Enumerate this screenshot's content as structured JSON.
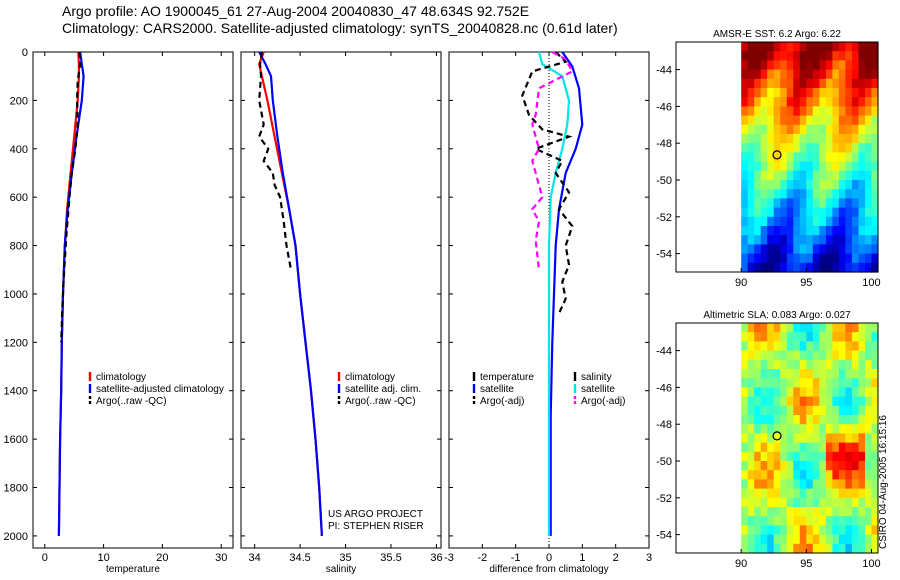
{
  "header": {
    "line1": "Argo profile: AO 1900045_61 27-Aug-2004 20040830_47 48.634S 92.752E",
    "line2": "Climatology: CARS2000. Satellite-adjusted climatology: synTS_20040828.nc (0.61d later)"
  },
  "side_label": "CSIRO 04-Aug-2005 16:15:16",
  "colors": {
    "red": "#ff0000",
    "blue": "#0000ff",
    "black": "#000000",
    "cyan": "#00e5e5",
    "magenta": "#ff00ff"
  },
  "chart_data": [
    {
      "id": "temperature",
      "type": "line",
      "xlabel": "temperature",
      "ylabel": "",
      "xlim": [
        -2,
        32
      ],
      "ylim": [
        2050,
        0
      ],
      "xticks": [
        0,
        10,
        20,
        30
      ],
      "yticks": [
        0,
        200,
        400,
        600,
        800,
        1000,
        1200,
        1400,
        1600,
        1800,
        2000
      ],
      "legend": [
        "climatology",
        "satellite-adjusted climatology",
        "Argo(..raw -QC)"
      ],
      "series": [
        {
          "name": "climatology",
          "color": "red",
          "dash": false,
          "x": [
            5.7,
            5.8,
            5.8,
            5.6,
            5.0,
            4.4,
            3.8,
            3.4,
            3.1,
            2.9,
            2.8,
            2.6,
            2.5,
            2.4
          ],
          "y": [
            0,
            50,
            100,
            200,
            350,
            500,
            650,
            800,
            1000,
            1200,
            1400,
            1600,
            1800,
            2000
          ]
        },
        {
          "name": "satellite-adjusted climatology",
          "color": "blue",
          "dash": false,
          "x": [
            6.0,
            6.3,
            6.6,
            6.3,
            5.4,
            4.6,
            3.9,
            3.4,
            3.1,
            2.9,
            2.8,
            2.6,
            2.5,
            2.4
          ],
          "y": [
            0,
            50,
            100,
            200,
            350,
            500,
            650,
            800,
            1000,
            1200,
            1400,
            1600,
            1800,
            2000
          ]
        },
        {
          "name": "Argo(..raw -QC)",
          "color": "black",
          "dash": true,
          "x": [
            5.9,
            6.0,
            5.6,
            5.5,
            5.6,
            5.2,
            4.6,
            4.2,
            3.7,
            3.3,
            3.0,
            2.8
          ],
          "y": [
            0,
            50,
            120,
            200,
            300,
            400,
            500,
            600,
            750,
            900,
            1050,
            1200
          ]
        }
      ]
    },
    {
      "id": "salinity",
      "type": "line",
      "xlabel": "salinity",
      "ylabel": "",
      "xlim": [
        33.85,
        36.05
      ],
      "ylim": [
        2050,
        0
      ],
      "xticks": [
        34,
        34.5,
        35,
        35.5,
        36
      ],
      "xtick_labels": [
        "34",
        "34.5",
        "35",
        "35.5",
        "36"
      ],
      "yticks": [
        0,
        200,
        400,
        600,
        800,
        1000,
        1200,
        1400,
        1600,
        1800,
        2000
      ],
      "legend": [
        "climatology",
        "satellite adj. clim.",
        "Argo(..raw -QC)"
      ],
      "annotation": [
        "US ARGO PROJECT",
        "PI: STEPHEN RISER"
      ],
      "series": [
        {
          "name": "climatology",
          "color": "red",
          "dash": false,
          "x": [
            34.1,
            34.05,
            34.08,
            34.14,
            34.22,
            34.3,
            34.38,
            34.45,
            34.5,
            34.56,
            34.62,
            34.67,
            34.71,
            34.74
          ],
          "y": [
            0,
            50,
            100,
            200,
            350,
            500,
            650,
            800,
            1000,
            1200,
            1400,
            1600,
            1800,
            2000
          ]
        },
        {
          "name": "satellite adj. clim.",
          "color": "blue",
          "dash": false,
          "x": [
            34.05,
            34.12,
            34.18,
            34.2,
            34.25,
            34.31,
            34.38,
            34.45,
            34.5,
            34.56,
            34.62,
            34.67,
            34.71,
            34.74
          ],
          "y": [
            0,
            50,
            100,
            200,
            350,
            500,
            650,
            800,
            1000,
            1200,
            1400,
            1600,
            1800,
            2000
          ]
        },
        {
          "name": "Argo(..raw -QC)",
          "color": "black",
          "dash": true,
          "x": [
            34.08,
            34.06,
            34.07,
            34.05,
            34.1,
            34.05,
            34.15,
            34.1,
            34.2,
            34.22,
            34.28,
            34.32,
            34.35,
            34.4
          ],
          "y": [
            0,
            50,
            100,
            200,
            300,
            350,
            400,
            450,
            500,
            550,
            600,
            700,
            800,
            900
          ]
        }
      ]
    },
    {
      "id": "difference",
      "type": "line",
      "xlabel": "difference from climatology",
      "ylabel": "",
      "xlim": [
        -3,
        3
      ],
      "ylim": [
        2050,
        0
      ],
      "xticks": [
        -3,
        -2,
        -1,
        0,
        1,
        2,
        3
      ],
      "yticks": [
        0,
        200,
        400,
        600,
        800,
        1000,
        1200,
        1400,
        1600,
        1800,
        2000
      ],
      "legend_left": [
        "temperature",
        "satellite",
        "Argo(-adj)"
      ],
      "legend_right": [
        "salinity",
        "satellite",
        "Argo(-adj)"
      ],
      "series": [
        {
          "name": "temperature satellite",
          "color": "blue",
          "dash": false,
          "x": [
            0.4,
            0.7,
            0.9,
            1.0,
            0.8,
            0.5,
            0.3,
            0.2,
            0.15,
            0.1,
            0.05,
            0.05,
            0.05
          ],
          "y": [
            0,
            60,
            150,
            300,
            400,
            500,
            650,
            800,
            1000,
            1200,
            1500,
            1800,
            2000
          ]
        },
        {
          "name": "salinity satellite",
          "color": "cyan",
          "dash": false,
          "x": [
            -0.3,
            -0.2,
            0.4,
            0.6,
            0.55,
            0.4,
            0.2,
            0.05,
            0.0,
            0.0,
            0.0
          ],
          "y": [
            0,
            50,
            100,
            200,
            300,
            400,
            500,
            600,
            800,
            1200,
            2000
          ]
        },
        {
          "name": "temperature Argo(-adj)",
          "color": "black",
          "dash": true,
          "x": [
            0.2,
            0.5,
            -0.5,
            -0.8,
            -0.6,
            -0.2,
            0.6,
            -0.4,
            0.4,
            0.2,
            0.6,
            0.3,
            0.7,
            0.5,
            0.6,
            0.4,
            0.5,
            0.3
          ],
          "y": [
            0,
            40,
            80,
            180,
            260,
            320,
            350,
            400,
            450,
            500,
            580,
            650,
            720,
            800,
            880,
            950,
            1020,
            1080
          ]
        },
        {
          "name": "salinity Argo(-adj)",
          "color": "magenta",
          "dash": true,
          "x": [
            0.1,
            0.5,
            0.7,
            -0.3,
            -0.4,
            -0.5,
            -0.3,
            -0.5,
            -0.3,
            -0.2,
            -0.5,
            -0.3,
            -0.4,
            -0.3
          ],
          "y": [
            0,
            30,
            80,
            150,
            260,
            300,
            400,
            450,
            550,
            600,
            650,
            700,
            780,
            900
          ]
        }
      ]
    },
    {
      "id": "sst_map",
      "type": "heatmap",
      "title": "AMSR-E SST: 6.2 Argo: 6.22",
      "xlim": [
        85,
        100.5
      ],
      "ylim": [
        -55,
        -42.5
      ],
      "xticks": [
        90,
        95,
        100
      ],
      "yticks": [
        -44,
        -46,
        -48,
        -50,
        -52,
        -54
      ],
      "data_x_range": [
        90,
        100.5
      ],
      "argo_position": [
        92.752,
        -48.634
      ]
    },
    {
      "id": "sla_map",
      "type": "heatmap",
      "title": "Altimetric SLA: 0.083 Argo: 0.027",
      "xlim": [
        85,
        100.5
      ],
      "ylim": [
        -55,
        -42.5
      ],
      "xticks": [
        90,
        95,
        100
      ],
      "yticks": [
        -44,
        -46,
        -48,
        -50,
        -52,
        -54
      ],
      "data_x_range": [
        90,
        100.5
      ],
      "argo_position": [
        92.752,
        -48.634
      ]
    }
  ]
}
